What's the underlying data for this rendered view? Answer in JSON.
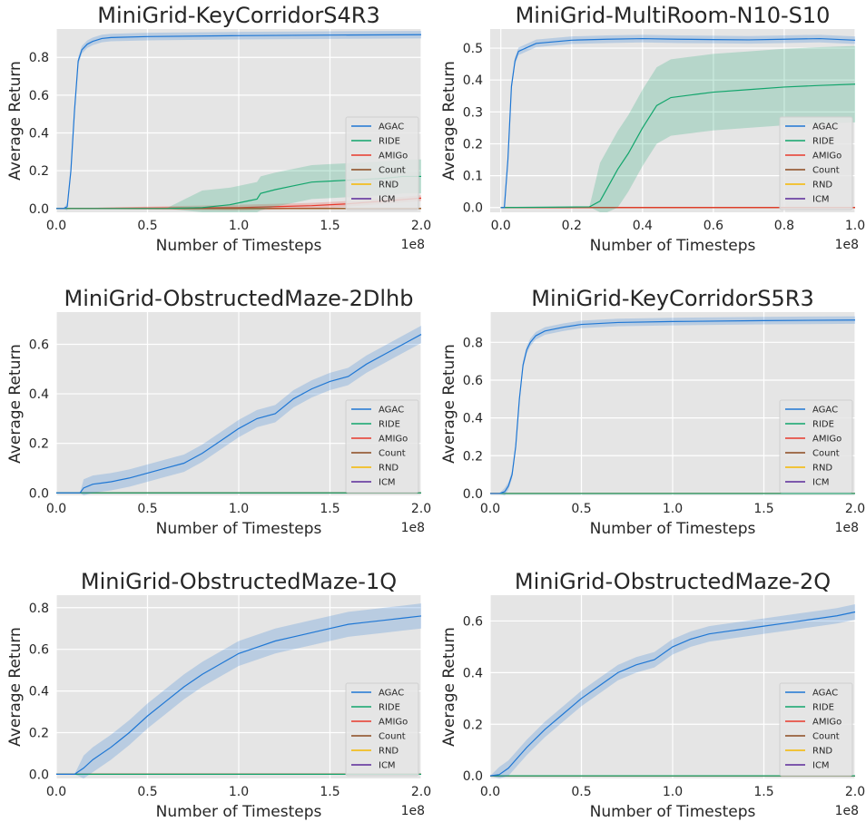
{
  "colors": {
    "AGAC": "#1f77d4",
    "RIDE": "#12a56c",
    "AMIGo": "#e8392c",
    "Count": "#8c4a1e",
    "RND": "#f5b800",
    "ICM": "#5b2a9a",
    "panel_bg": "#e5e5e5",
    "grid": "#ffffff"
  },
  "legend": [
    "AGAC",
    "RIDE",
    "AMIGo",
    "Count",
    "RND",
    "ICM"
  ],
  "chart_data": [
    {
      "type": "line",
      "title": "MiniGrid-KeyCorridorS4R3",
      "xlabel": "Number of Timesteps",
      "ylabel": "Average Return",
      "x_multiplier": "1e8",
      "xlim": [
        0,
        2.0
      ],
      "ylim": [
        -0.02,
        0.95
      ],
      "xticks": [
        "0.0",
        "0.5",
        "1.0",
        "1.5",
        "2.0"
      ],
      "yticks": [
        "0.0",
        "0.2",
        "0.4",
        "0.6",
        "0.8"
      ],
      "xtick_values": [
        0,
        0.5,
        1.0,
        1.5,
        2.0
      ],
      "ytick_values": [
        0,
        0.2,
        0.4,
        0.6,
        0.8
      ],
      "grid": true,
      "legend_position": "lower-right",
      "series": [
        {
          "name": "AGAC",
          "x": [
            0,
            0.04,
            0.06,
            0.08,
            0.1,
            0.12,
            0.14,
            0.17,
            0.2,
            0.25,
            0.3,
            0.5,
            1.0,
            1.5,
            2.0
          ],
          "y": [
            0,
            0,
            0.01,
            0.2,
            0.52,
            0.78,
            0.84,
            0.87,
            0.885,
            0.9,
            0.905,
            0.91,
            0.915,
            0.918,
            0.92
          ],
          "band": 0.02
        },
        {
          "name": "RIDE",
          "x": [
            0,
            0.6,
            0.8,
            0.95,
            1.05,
            1.1,
            1.12,
            1.2,
            1.3,
            1.4,
            1.5,
            1.6,
            1.7,
            1.8,
            1.9,
            2.0
          ],
          "y": [
            0,
            0,
            0.005,
            0.02,
            0.04,
            0.05,
            0.08,
            0.1,
            0.12,
            0.14,
            0.145,
            0.15,
            0.155,
            0.16,
            0.17,
            0.17
          ],
          "band": 0.09
        },
        {
          "name": "AMIGo",
          "x": [
            0,
            1.0,
            1.2,
            1.4,
            1.6,
            1.8,
            2.0
          ],
          "y": [
            0,
            0.005,
            0.01,
            0.015,
            0.025,
            0.04,
            0.055
          ],
          "band": 0.015
        },
        {
          "name": "Count",
          "x": [
            0,
            2.0
          ],
          "y": [
            0,
            0
          ],
          "band": 0
        },
        {
          "name": "RND",
          "x": [
            0,
            2.0
          ],
          "y": [
            0,
            0
          ],
          "band": 0
        },
        {
          "name": "ICM",
          "x": [
            0,
            2.0
          ],
          "y": [
            0,
            0
          ],
          "band": 0
        }
      ]
    },
    {
      "type": "line",
      "title": "MiniGrid-MultiRoom-N10-S10",
      "xlabel": "Number of Timesteps",
      "ylabel": "Average Return",
      "x_multiplier": "1e8",
      "xlim": [
        -0.03,
        1.0
      ],
      "ylim": [
        -0.015,
        0.56
      ],
      "xticks": [
        "0.0",
        "0.2",
        "0.4",
        "0.6",
        "0.8",
        "1.0"
      ],
      "yticks": [
        "0.0",
        "0.1",
        "0.2",
        "0.3",
        "0.4",
        "0.5"
      ],
      "xtick_values": [
        0,
        0.2,
        0.4,
        0.6,
        0.8,
        1.0
      ],
      "ytick_values": [
        0,
        0.1,
        0.2,
        0.3,
        0.4,
        0.5
      ],
      "grid": true,
      "legend_position": "lower-right",
      "series": [
        {
          "name": "AGAC",
          "x": [
            0,
            0.01,
            0.02,
            0.03,
            0.04,
            0.05,
            0.08,
            0.1,
            0.2,
            0.3,
            0.4,
            0.5,
            0.6,
            0.7,
            0.8,
            0.9,
            1.0
          ],
          "y": [
            0,
            0,
            0.15,
            0.38,
            0.46,
            0.49,
            0.505,
            0.515,
            0.525,
            0.528,
            0.53,
            0.528,
            0.527,
            0.526,
            0.528,
            0.53,
            0.525
          ],
          "band": 0.012
        },
        {
          "name": "RIDE",
          "x": [
            0,
            0.25,
            0.28,
            0.3,
            0.33,
            0.36,
            0.4,
            0.44,
            0.48,
            0.55,
            0.6,
            0.7,
            0.8,
            0.9,
            1.0
          ],
          "y": [
            0,
            0.002,
            0.02,
            0.06,
            0.12,
            0.17,
            0.25,
            0.32,
            0.345,
            0.355,
            0.362,
            0.37,
            0.378,
            0.383,
            0.387
          ],
          "band": 0.12
        },
        {
          "name": "AMIGo",
          "x": [
            0,
            1.0
          ],
          "y": [
            0,
            0
          ],
          "band": 0
        },
        {
          "name": "Count",
          "x": [
            0,
            1.0
          ],
          "y": [
            0,
            0
          ],
          "band": 0
        },
        {
          "name": "RND",
          "x": [
            0,
            1.0
          ],
          "y": [
            0,
            0
          ],
          "band": 0
        },
        {
          "name": "ICM",
          "x": [
            0,
            1.0
          ],
          "y": [
            0,
            0
          ],
          "band": 0
        }
      ]
    },
    {
      "type": "line",
      "title": "MiniGrid-ObstructedMaze-2Dlhb",
      "xlabel": "Number of Timesteps",
      "ylabel": "Average Return",
      "x_multiplier": "1e8",
      "xlim": [
        0,
        2.0
      ],
      "ylim": [
        -0.01,
        0.73
      ],
      "xticks": [
        "0.0",
        "0.5",
        "1.0",
        "1.5",
        "2.0"
      ],
      "yticks": [
        "0.0",
        "0.2",
        "0.4",
        "0.6"
      ],
      "xtick_values": [
        0,
        0.5,
        1.0,
        1.5,
        2.0
      ],
      "ytick_values": [
        0,
        0.2,
        0.4,
        0.6
      ],
      "grid": true,
      "legend_position": "lower-right",
      "series": [
        {
          "name": "AGAC",
          "x": [
            0,
            0.13,
            0.15,
            0.2,
            0.25,
            0.3,
            0.4,
            0.5,
            0.6,
            0.7,
            0.8,
            0.9,
            1.0,
            1.1,
            1.2,
            1.3,
            1.4,
            1.5,
            1.6,
            1.7,
            1.8,
            1.9,
            2.0
          ],
          "y": [
            0,
            0,
            0.02,
            0.035,
            0.04,
            0.045,
            0.06,
            0.08,
            0.1,
            0.12,
            0.16,
            0.21,
            0.26,
            0.3,
            0.32,
            0.38,
            0.42,
            0.45,
            0.47,
            0.52,
            0.56,
            0.6,
            0.64
          ],
          "band": 0.035
        },
        {
          "name": "RIDE",
          "x": [
            0,
            2.0
          ],
          "y": [
            0,
            0
          ],
          "band": 0
        },
        {
          "name": "AMIGo",
          "x": [
            0,
            2.0
          ],
          "y": [
            0,
            0
          ],
          "band": 0
        },
        {
          "name": "Count",
          "x": [
            0,
            2.0
          ],
          "y": [
            0,
            0
          ],
          "band": 0
        },
        {
          "name": "RND",
          "x": [
            0,
            2.0
          ],
          "y": [
            0,
            0
          ],
          "band": 0
        },
        {
          "name": "ICM",
          "x": [
            0,
            2.0
          ],
          "y": [
            0,
            0
          ],
          "band": 0
        }
      ]
    },
    {
      "type": "line",
      "title": "MiniGrid-KeyCorridorS5R3",
      "xlabel": "Number of Timesteps",
      "ylabel": "Average Return",
      "x_multiplier": "1e8",
      "xlim": [
        0,
        2.0
      ],
      "ylim": [
        -0.01,
        0.96
      ],
      "xticks": [
        "0.0",
        "0.5",
        "1.0",
        "1.5",
        "2.0"
      ],
      "yticks": [
        "0.0",
        "0.2",
        "0.4",
        "0.6",
        "0.8"
      ],
      "xtick_values": [
        0,
        0.5,
        1.0,
        1.5,
        2.0
      ],
      "ytick_values": [
        0,
        0.2,
        0.4,
        0.6,
        0.8
      ],
      "grid": true,
      "legend_position": "lower-right",
      "series": [
        {
          "name": "AGAC",
          "x": [
            0,
            0.05,
            0.08,
            0.1,
            0.12,
            0.14,
            0.16,
            0.18,
            0.2,
            0.22,
            0.25,
            0.3,
            0.4,
            0.5,
            0.7,
            1.0,
            1.5,
            2.0
          ],
          "y": [
            0,
            0,
            0.01,
            0.04,
            0.1,
            0.25,
            0.5,
            0.68,
            0.76,
            0.8,
            0.835,
            0.86,
            0.88,
            0.895,
            0.905,
            0.91,
            0.915,
            0.918
          ],
          "band": 0.02
        },
        {
          "name": "RIDE",
          "x": [
            0,
            2.0
          ],
          "y": [
            0,
            0
          ],
          "band": 0
        },
        {
          "name": "AMIGo",
          "x": [
            0,
            2.0
          ],
          "y": [
            0,
            0
          ],
          "band": 0
        },
        {
          "name": "Count",
          "x": [
            0,
            2.0
          ],
          "y": [
            0,
            0
          ],
          "band": 0
        },
        {
          "name": "RND",
          "x": [
            0,
            2.0
          ],
          "y": [
            0,
            0
          ],
          "band": 0
        },
        {
          "name": "ICM",
          "x": [
            0,
            2.0
          ],
          "y": [
            0,
            0
          ],
          "band": 0
        }
      ]
    },
    {
      "type": "line",
      "title": "MiniGrid-ObstructedMaze-1Q",
      "xlabel": "Number of Timesteps",
      "ylabel": "Average Return",
      "x_multiplier": "1e8",
      "xlim": [
        0,
        2.0
      ],
      "ylim": [
        -0.02,
        0.86
      ],
      "xticks": [
        "0.0",
        "0.5",
        "1.0",
        "1.5",
        "2.0"
      ],
      "yticks": [
        "0.0",
        "0.2",
        "0.4",
        "0.6",
        "0.8"
      ],
      "xtick_values": [
        0,
        0.5,
        1.0,
        1.5,
        2.0
      ],
      "ytick_values": [
        0,
        0.2,
        0.4,
        0.6,
        0.8
      ],
      "grid": true,
      "legend_position": "lower-right",
      "series": [
        {
          "name": "AGAC",
          "x": [
            0,
            0.1,
            0.15,
            0.2,
            0.3,
            0.4,
            0.5,
            0.6,
            0.7,
            0.8,
            0.9,
            1.0,
            1.1,
            1.2,
            1.3,
            1.4,
            1.5,
            1.6,
            1.7,
            1.8,
            1.9,
            2.0
          ],
          "y": [
            0,
            0,
            0.03,
            0.07,
            0.13,
            0.2,
            0.28,
            0.35,
            0.42,
            0.48,
            0.53,
            0.58,
            0.61,
            0.64,
            0.66,
            0.68,
            0.7,
            0.72,
            0.73,
            0.74,
            0.75,
            0.76
          ],
          "band": 0.06
        },
        {
          "name": "RIDE",
          "x": [
            0,
            2.0
          ],
          "y": [
            0,
            0
          ],
          "band": 0
        },
        {
          "name": "AMIGo",
          "x": [
            0,
            2.0
          ],
          "y": [
            0,
            0
          ],
          "band": 0
        },
        {
          "name": "Count",
          "x": [
            0,
            2.0
          ],
          "y": [
            0,
            0
          ],
          "band": 0
        },
        {
          "name": "RND",
          "x": [
            0,
            2.0
          ],
          "y": [
            0,
            0
          ],
          "band": 0
        },
        {
          "name": "ICM",
          "x": [
            0,
            2.0
          ],
          "y": [
            0,
            0
          ],
          "band": 0
        }
      ]
    },
    {
      "type": "line",
      "title": "MiniGrid-ObstructedMaze-2Q",
      "xlabel": "Number of Timesteps",
      "ylabel": "Average Return",
      "x_multiplier": "1e8",
      "xlim": [
        0,
        2.0
      ],
      "ylim": [
        -0.01,
        0.7
      ],
      "xticks": [
        "0.0",
        "0.5",
        "1.0",
        "1.5",
        "2.0"
      ],
      "yticks": [
        "0.0",
        "0.2",
        "0.4",
        "0.6"
      ],
      "xtick_values": [
        0,
        0.5,
        1.0,
        1.5,
        2.0
      ],
      "ytick_values": [
        0,
        0.2,
        0.4,
        0.6
      ],
      "grid": true,
      "legend_position": "lower-right",
      "series": [
        {
          "name": "AGAC",
          "x": [
            0,
            0.05,
            0.1,
            0.15,
            0.2,
            0.3,
            0.4,
            0.5,
            0.6,
            0.7,
            0.8,
            0.9,
            1.0,
            1.1,
            1.2,
            1.3,
            1.4,
            1.5,
            1.6,
            1.7,
            1.8,
            1.9,
            2.0
          ],
          "y": [
            0,
            0.005,
            0.03,
            0.07,
            0.11,
            0.18,
            0.24,
            0.3,
            0.35,
            0.4,
            0.43,
            0.45,
            0.5,
            0.53,
            0.55,
            0.56,
            0.57,
            0.58,
            0.59,
            0.6,
            0.61,
            0.62,
            0.635
          ],
          "band": 0.03
        },
        {
          "name": "RIDE",
          "x": [
            0,
            2.0
          ],
          "y": [
            0,
            0
          ],
          "band": 0
        },
        {
          "name": "AMIGo",
          "x": [
            0,
            2.0
          ],
          "y": [
            0,
            0
          ],
          "band": 0
        },
        {
          "name": "Count",
          "x": [
            0,
            2.0
          ],
          "y": [
            0,
            0
          ],
          "band": 0
        },
        {
          "name": "RND",
          "x": [
            0,
            2.0
          ],
          "y": [
            0,
            0
          ],
          "band": 0
        },
        {
          "name": "ICM",
          "x": [
            0,
            2.0
          ],
          "y": [
            0,
            0
          ],
          "band": 0
        }
      ]
    }
  ]
}
